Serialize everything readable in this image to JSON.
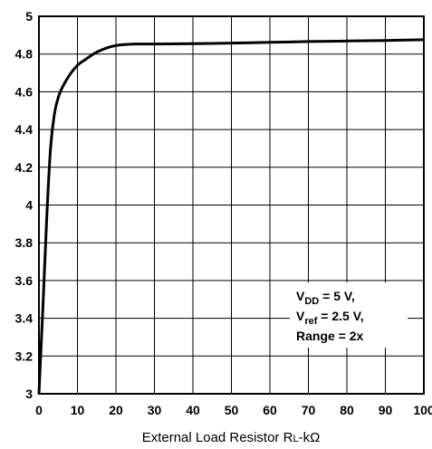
{
  "chart_data": {
    "type": "line",
    "title": "",
    "xlabel": "External Load Resistor RL-kΩ",
    "xlabel_main": "External Load Resistor ",
    "xlabel_r": "R",
    "xlabel_sub": "L",
    "xlabel_unit": "-kΩ",
    "ylabel": "",
    "xlim": [
      0,
      100
    ],
    "ylim": [
      3,
      5
    ],
    "x_ticks": [
      "0",
      "10",
      "20",
      "30",
      "40",
      "50",
      "60",
      "70",
      "80",
      "90",
      "100"
    ],
    "y_ticks": [
      "3",
      "3.2",
      "3.4",
      "3.6",
      "3.8",
      "4",
      "4.2",
      "4.4",
      "4.6",
      "4.8",
      "5"
    ],
    "grid": true,
    "annotation": {
      "line1_main": "V",
      "line1_sub": "DD",
      "line1_rest": " = 5 V,",
      "line2_main": "V",
      "line2_sub": "ref",
      "line2_rest": " = 2.5 V,",
      "line3": "Range = 2x"
    },
    "series": [
      {
        "x": [
          0,
          1,
          2,
          3,
          4,
          5,
          6,
          8,
          10,
          12,
          15,
          18,
          20,
          22,
          25,
          30,
          40,
          50,
          60,
          70,
          80,
          90,
          100
        ],
        "y": [
          3.0,
          3.45,
          3.92,
          4.3,
          4.48,
          4.57,
          4.62,
          4.69,
          4.74,
          4.77,
          4.81,
          4.835,
          4.845,
          4.85,
          4.853,
          4.853,
          4.855,
          4.858,
          4.862,
          4.866,
          4.869,
          4.872,
          4.876
        ]
      }
    ]
  }
}
